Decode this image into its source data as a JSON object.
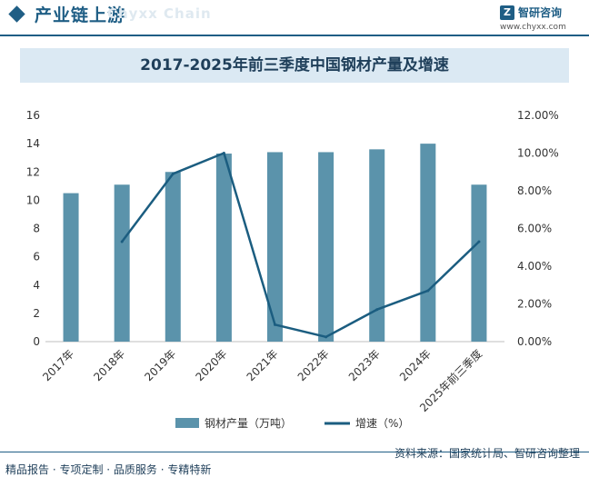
{
  "header": {
    "title": "产业链上游",
    "watermark": "Chyxx Chain",
    "brand_name": "智研咨询",
    "brand_logo": "Z",
    "brand_url": "www.chyxx.com"
  },
  "footer": {
    "source": "资料来源：国家统计局、智研咨询整理",
    "tagline": "精品报告 · 专项定制 · 品质服务 · 专精特新"
  },
  "colors": {
    "bar": "#5b93ab",
    "line": "#1b5d80",
    "brand": "#1f5e85"
  },
  "chart_data": {
    "type": "bar",
    "title": "2017-2025年前三季度中国钢材产量及增速",
    "categories": [
      "2017年",
      "2018年",
      "2019年",
      "2020年",
      "2021年",
      "2022年",
      "2023年",
      "2024年",
      "2025年前三季度"
    ],
    "series": [
      {
        "name": "钢材产量（万吨）",
        "type": "bar",
        "axis": "left",
        "values": [
          10.5,
          11.1,
          12.0,
          13.3,
          13.4,
          13.4,
          13.6,
          14.0,
          11.1
        ]
      },
      {
        "name": "增速（%）",
        "type": "line",
        "axis": "right",
        "values": [
          null,
          5.3,
          8.9,
          10.0,
          0.9,
          0.25,
          1.7,
          2.7,
          5.3
        ]
      }
    ],
    "y_left": {
      "min": 0,
      "max": 16,
      "ticks": [
        "0",
        "2",
        "4",
        "6",
        "8",
        "10",
        "12",
        "14",
        "16"
      ]
    },
    "y_right": {
      "min": 0,
      "max": 12,
      "ticks": [
        "0.00%",
        "2.00%",
        "4.00%",
        "6.00%",
        "8.00%",
        "10.00%",
        "12.00%"
      ]
    },
    "grid": false,
    "legend": "bottom-center"
  }
}
